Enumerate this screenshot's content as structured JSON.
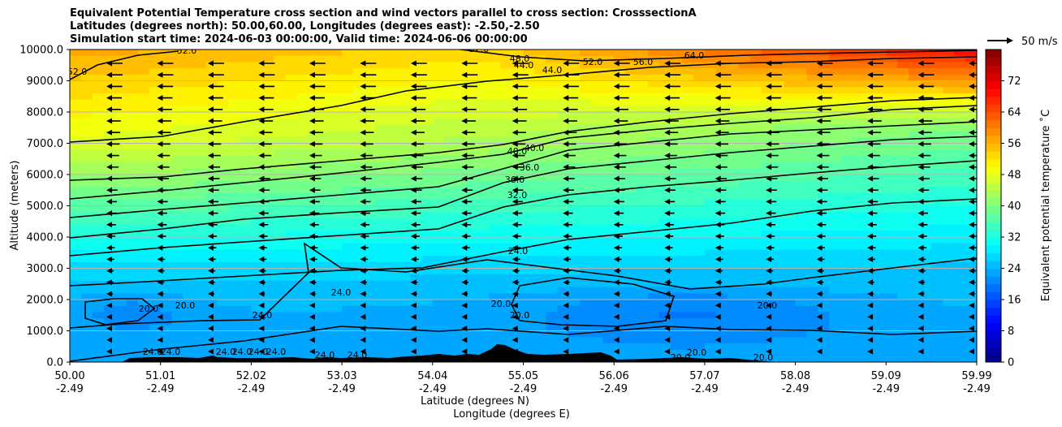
{
  "chart_data": {
    "type": "contourf",
    "title_lines": [
      "Equivalent Potential Temperature cross section and wind vectors parallel to cross section: CrosssectionA",
      "Latitudes (degrees north): 50.00,60.00, Longitudes (degrees east): -2.50,-2.50",
      "Simulation start time: 2024-06-03 00:00:00, Valid time: 2024-06-06 00:00:00"
    ],
    "ylabel": "Altitude (meters)",
    "xlabel_lat": "Latitude (degrees N)",
    "xlabel_lon": "Longitude (degrees E)",
    "ylim": [
      0,
      10000
    ],
    "xlim": [
      50.0,
      59.99
    ],
    "yticks": [
      "0.0",
      "1000.0",
      "2000.0",
      "3000.0",
      "4000.0",
      "5000.0",
      "6000.0",
      "7000.0",
      "8000.0",
      "9000.0",
      "10000.0"
    ],
    "xticks_lat": [
      "50.00",
      "51.01",
      "52.02",
      "53.03",
      "54.04",
      "55.05",
      "56.06",
      "57.07",
      "58.08",
      "59.09",
      "59.99"
    ],
    "xticks_lon": [
      "-2.49",
      "-2.49",
      "-2.49",
      "-2.49",
      "-2.49",
      "-2.49",
      "-2.49",
      "-2.49",
      "-2.49",
      "-2.49",
      "-2.49"
    ],
    "grid": "horizontal",
    "colorbar": {
      "label": "Equivalent potential temperature ˚C",
      "range": [
        0,
        80
      ],
      "ticks": [
        "0",
        "8",
        "16",
        "24",
        "32",
        "40",
        "48",
        "56",
        "64",
        "72"
      ]
    },
    "quiver_key": "50 m/s",
    "contour_labels": [
      {
        "text": "52.0"
      },
      {
        "text": "52.0"
      },
      {
        "text": "52.0"
      },
      {
        "text": "48.0"
      },
      {
        "text": "44.0"
      },
      {
        "text": "44.0"
      },
      {
        "text": "52.0"
      },
      {
        "text": "56.0"
      },
      {
        "text": "64.0"
      },
      {
        "text": "40.0"
      },
      {
        "text": "40.0"
      },
      {
        "text": "36.0"
      },
      {
        "text": "36.0"
      },
      {
        "text": "32.0"
      },
      {
        "text": "24.0"
      },
      {
        "text": "20.0"
      },
      {
        "text": "20.0"
      },
      {
        "text": "24.0"
      },
      {
        "text": "24.0"
      },
      {
        "text": "20.0"
      },
      {
        "text": "20.0"
      },
      {
        "text": "20.0"
      },
      {
        "text": "24.0"
      },
      {
        "text": "24.0"
      },
      {
        "text": "24.0"
      },
      {
        "text": "24.0"
      },
      {
        "text": "24.0"
      },
      {
        "text": "24.0"
      },
      {
        "text": "24.0"
      },
      {
        "text": "24.0"
      },
      {
        "text": "20.0"
      },
      {
        "text": "20.0"
      },
      {
        "text": "20.0"
      }
    ],
    "colors": {
      "colormap": "jet",
      "terrain": "#000000",
      "grid": "#b4b4b4",
      "contour": "#000000"
    }
  }
}
